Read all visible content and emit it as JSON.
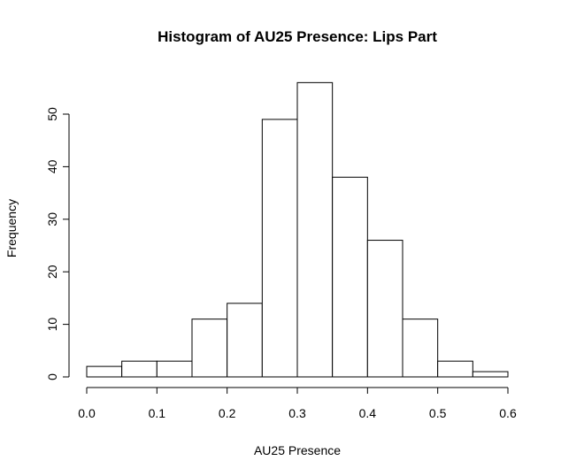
{
  "chart_data": {
    "type": "bar",
    "title": "Histogram of AU25 Presence: Lips Part",
    "xlabel": "AU25 Presence",
    "ylabel": "Frequency",
    "bins": [
      {
        "start": 0.0,
        "end": 0.05,
        "count": 2
      },
      {
        "start": 0.05,
        "end": 0.1,
        "count": 3
      },
      {
        "start": 0.1,
        "end": 0.15,
        "count": 3
      },
      {
        "start": 0.15,
        "end": 0.2,
        "count": 11
      },
      {
        "start": 0.2,
        "end": 0.25,
        "count": 14
      },
      {
        "start": 0.25,
        "end": 0.3,
        "count": 49
      },
      {
        "start": 0.3,
        "end": 0.35,
        "count": 56
      },
      {
        "start": 0.35,
        "end": 0.4,
        "count": 38
      },
      {
        "start": 0.4,
        "end": 0.45,
        "count": 26
      },
      {
        "start": 0.45,
        "end": 0.5,
        "count": 11
      },
      {
        "start": 0.5,
        "end": 0.55,
        "count": 3
      },
      {
        "start": 0.55,
        "end": 0.6,
        "count": 1
      }
    ],
    "xlim": [
      0,
      0.6
    ],
    "ylim": [
      0,
      56
    ],
    "x_ticks": [
      "0.0",
      "0.1",
      "0.2",
      "0.3",
      "0.4",
      "0.5",
      "0.6"
    ],
    "x_tick_values": [
      0,
      0.1,
      0.2,
      0.3,
      0.4,
      0.5,
      0.6
    ],
    "y_ticks": [
      "0",
      "10",
      "20",
      "30",
      "40",
      "50"
    ],
    "y_tick_values": [
      0,
      10,
      20,
      30,
      40,
      50
    ],
    "grid": false,
    "bar_fill": "#ffffff",
    "bar_stroke": "#000000"
  }
}
